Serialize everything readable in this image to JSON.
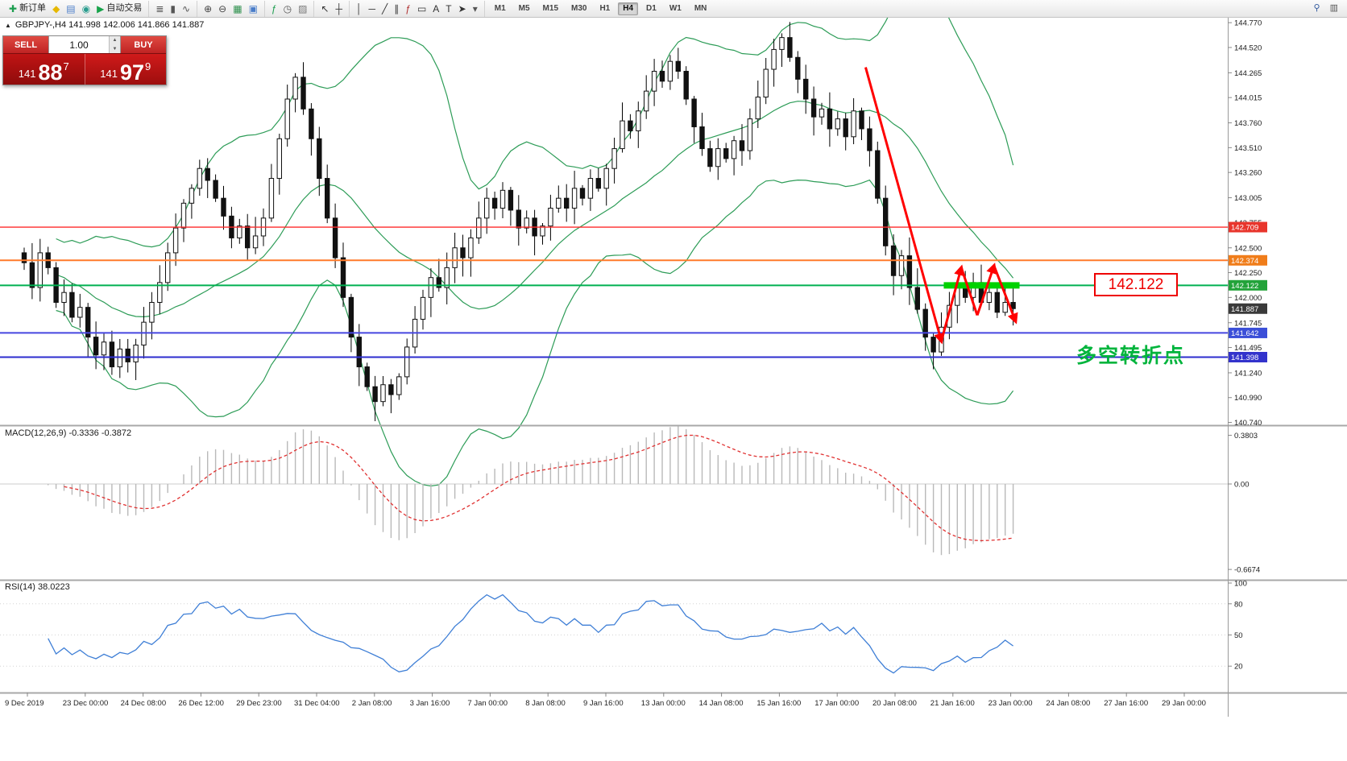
{
  "toolbar": {
    "groups": [
      {
        "name": "trade",
        "items": [
          {
            "name": "new-order-button",
            "glyph": "✚",
            "color": "#1c9e4f",
            "label": "新订单"
          },
          {
            "name": "favorites-icon",
            "glyph": "◆",
            "color": "#e6b800"
          },
          {
            "name": "data-window-icon",
            "glyph": "▤",
            "color": "#4a7dc9"
          },
          {
            "name": "market-watch-icon",
            "glyph": "◉",
            "color": "#2a9d8f"
          },
          {
            "name": "autotrading-button",
            "glyph": "▶",
            "color": "#17a34a",
            "label": "自动交易"
          }
        ]
      },
      {
        "name": "chart-type",
        "items": [
          {
            "name": "bar-chart-icon",
            "glyph": "≣",
            "color": "#555"
          },
          {
            "name": "candlestick-chart-icon",
            "glyph": "▮",
            "color": "#555"
          },
          {
            "name": "line-chart-icon",
            "glyph": "∿",
            "color": "#555"
          }
        ]
      },
      {
        "name": "zoom",
        "items": [
          {
            "name": "zoom-in-icon",
            "glyph": "⊕",
            "color": "#444"
          },
          {
            "name": "zoom-out-icon",
            "glyph": "⊖",
            "color": "#444"
          },
          {
            "name": "tile-windows-icon",
            "glyph": "▦",
            "color": "#2a8f4a"
          },
          {
            "name": "new-chart-icon",
            "glyph": "▣",
            "color": "#4a7dc9"
          }
        ]
      },
      {
        "name": "insert",
        "items": [
          {
            "name": "indicators-icon",
            "glyph": "ƒ",
            "color": "#1c9e4f"
          },
          {
            "name": "periods-icon",
            "glyph": "◷",
            "color": "#555"
          },
          {
            "name": "templates-icon",
            "glyph": "▨",
            "color": "#777"
          }
        ]
      },
      {
        "name": "pointer",
        "items": [
          {
            "name": "cursor-icon",
            "glyph": "↖",
            "color": "#333"
          },
          {
            "name": "crosshair-icon",
            "glyph": "┼",
            "color": "#333"
          }
        ]
      },
      {
        "name": "objects",
        "items": [
          {
            "name": "vertical-line-icon",
            "glyph": "│",
            "color": "#333"
          },
          {
            "name": "horizontal-line-icon",
            "glyph": "─",
            "color": "#333"
          },
          {
            "name": "trendline-icon",
            "glyph": "╱",
            "color": "#333"
          },
          {
            "name": "channel-icon",
            "glyph": "∥",
            "color": "#333"
          },
          {
            "name": "fibonacci-icon",
            "glyph": "ƒ",
            "color": "#b03030"
          },
          {
            "name": "shapes-icon",
            "glyph": "▭",
            "color": "#333"
          },
          {
            "name": "text-icon",
            "glyph": "A",
            "color": "#333"
          },
          {
            "name": "label-icon",
            "glyph": "T",
            "color": "#333"
          },
          {
            "name": "arrows-tool-icon",
            "glyph": "➤",
            "color": "#333"
          },
          {
            "name": "objects-dropdown-icon",
            "glyph": "▾",
            "color": "#555"
          }
        ]
      }
    ],
    "timeframes": [
      {
        "label": "M1"
      },
      {
        "label": "M5"
      },
      {
        "label": "M15"
      },
      {
        "label": "M30"
      },
      {
        "label": "H1"
      },
      {
        "label": "H4",
        "active": true
      },
      {
        "label": "D1"
      },
      {
        "label": "W1"
      },
      {
        "label": "MN"
      }
    ],
    "right_items": [
      {
        "name": "search-icon",
        "glyph": "⚲",
        "color": "#335a9e"
      },
      {
        "name": "window-list-icon",
        "glyph": "▥",
        "color": "#555"
      }
    ]
  },
  "chart": {
    "symbol_marker": "▲",
    "symbol_info": "GBPJPY-,H4  141.998 142.006 141.866 141.887",
    "macd_label": "MACD(12,26,9) -0.3336 -0.3872",
    "rsi_label": "RSI(14) 38.0223",
    "annotations": {
      "price_callout": "142.122",
      "turning_point": "多空转折点"
    }
  },
  "trade_panel": {
    "sell_label": "SELL",
    "buy_label": "BUY",
    "volume": "1.00",
    "sell_price": {
      "main": "141",
      "big": "88",
      "sup": "7"
    },
    "buy_price": {
      "main": "141",
      "big": "97",
      "sup": "9"
    },
    "icons": {
      "spin_up": "▲",
      "spin_down": "▼"
    }
  },
  "chart_data": {
    "type": "candlestick",
    "symbol": "GBPJPY-",
    "timeframe": "H4",
    "ohlc_current": {
      "open": "141.998",
      "high": "142.006",
      "low": "141.866",
      "close": "141.887"
    },
    "price_range": {
      "max": 144.82,
      "min": 140.72
    },
    "closes": [
      142.35,
      142.1,
      142.45,
      142.3,
      141.95,
      142.05,
      141.8,
      141.9,
      141.6,
      141.42,
      141.55,
      141.3,
      141.48,
      141.35,
      141.52,
      141.75,
      141.95,
      142.15,
      142.45,
      142.7,
      142.95,
      143.1,
      143.3,
      143.18,
      143.0,
      142.82,
      142.6,
      142.72,
      142.5,
      142.62,
      142.8,
      143.2,
      143.6,
      144.0,
      144.22,
      143.9,
      143.6,
      143.2,
      142.8,
      142.4,
      142.0,
      141.6,
      141.3,
      141.1,
      140.95,
      141.12,
      141.02,
      141.2,
      141.5,
      141.78,
      142.0,
      142.2,
      142.1,
      142.3,
      142.5,
      142.4,
      142.6,
      142.8,
      143.0,
      142.9,
      143.08,
      142.88,
      142.7,
      142.8,
      142.62,
      142.72,
      142.9,
      143.0,
      142.9,
      143.1,
      143.0,
      143.2,
      143.1,
      143.3,
      143.5,
      143.78,
      143.68,
      143.88,
      144.08,
      144.28,
      144.18,
      144.38,
      144.28,
      144.0,
      143.72,
      143.5,
      143.32,
      143.5,
      143.4,
      143.58,
      143.48,
      143.8,
      144.02,
      144.3,
      144.5,
      144.62,
      144.42,
      144.2,
      144.0,
      143.82,
      143.9,
      143.7,
      143.8,
      143.62,
      143.88,
      143.7,
      143.48,
      143.0,
      142.52,
      142.22,
      142.42,
      142.1,
      141.88,
      141.6,
      141.45,
      141.7,
      141.92,
      142.1,
      142.0,
      142.15,
      141.95,
      142.05,
      141.85,
      141.95,
      141.887
    ],
    "bollinger": {
      "period": 20,
      "deviation": 2,
      "color": "#2d9c57"
    },
    "macd": {
      "fast": 12,
      "slow": 26,
      "signal": 9,
      "histogram_color": "#b9b9b9",
      "signal_color": "#e03131",
      "scale": {
        "max": "0.3803",
        "zero": "0.00",
        "min": "-0.6674"
      }
    },
    "rsi": {
      "period": 14,
      "color": "#3f7fd6",
      "scale": [
        "100",
        "80",
        "50",
        "20"
      ],
      "levels": [
        80,
        50,
        20
      ]
    },
    "price_scale_labels": [
      "144.770",
      "144.520",
      "144.265",
      "144.015",
      "143.760",
      "143.510",
      "143.260",
      "143.005",
      "142.755",
      "142.500",
      "142.250",
      "142.000",
      "141.745",
      "141.495",
      "141.240",
      "140.990",
      "140.740"
    ],
    "price_tags": [
      {
        "text": "142.709",
        "price": 142.709,
        "color": "#e8352c"
      },
      {
        "text": "142.374",
        "price": 142.374,
        "color": "#f07d1a"
      },
      {
        "text": "142.122",
        "price": 142.122,
        "color": "#23a33a"
      },
      {
        "text": "141.887",
        "price": 141.887,
        "color": "#3a3a3a"
      },
      {
        "text": "141.642",
        "price": 141.642,
        "color": "#3b4fd8"
      },
      {
        "text": "141.398",
        "price": 141.398,
        "color": "#3333cc"
      }
    ],
    "hlines": [
      {
        "price": 142.709,
        "color": "#ff2a2a",
        "width": 1.4
      },
      {
        "price": 142.374,
        "color": "#ff7a2a",
        "width": 2
      },
      {
        "price": 142.122,
        "color": "#00b050",
        "width": 2
      },
      {
        "price": 141.642,
        "color": "#4646e0",
        "width": 2
      },
      {
        "price": 141.398,
        "color": "#2d2dcf",
        "width": 2
      }
    ],
    "drawings": {
      "color": "#ff0000",
      "width": 3,
      "support_segment": {
        "price": 142.122,
        "from_idx": 115.3,
        "to_idx": 124.8,
        "color": "#00d200",
        "width": 8
      },
      "arrows": [
        {
          "pts": [
            [
              105.5,
              144.32
            ],
            [
              115.0,
              141.56
            ]
          ],
          "heads": [
            1
          ]
        },
        {
          "pts": [
            [
              115.0,
              141.56
            ],
            [
              117.5,
              142.3
            ],
            [
              119.5,
              141.82
            ],
            [
              121.6,
              142.32
            ],
            [
              124.3,
              141.76
            ]
          ],
          "heads": [
            1,
            3,
            4
          ]
        }
      ]
    },
    "time_labels": [
      "9 Dec 2019",
      "23 Dec 00:00",
      "24 Dec 08:00",
      "26 Dec 12:00",
      "29 Dec 23:00",
      "31 Dec 04:00",
      "2 Jan 08:00",
      "3 Jan 16:00",
      "7 Jan 00:00",
      "8 Jan 08:00",
      "9 Jan 16:00",
      "13 Jan 00:00",
      "14 Jan 08:00",
      "15 Jan 16:00",
      "17 Jan 00:00",
      "20 Jan 08:00",
      "21 Jan 16:00",
      "23 Jan 00:00",
      "24 Jan 08:00",
      "27 Jan 16:00",
      "29 Jan 00:00"
    ]
  }
}
